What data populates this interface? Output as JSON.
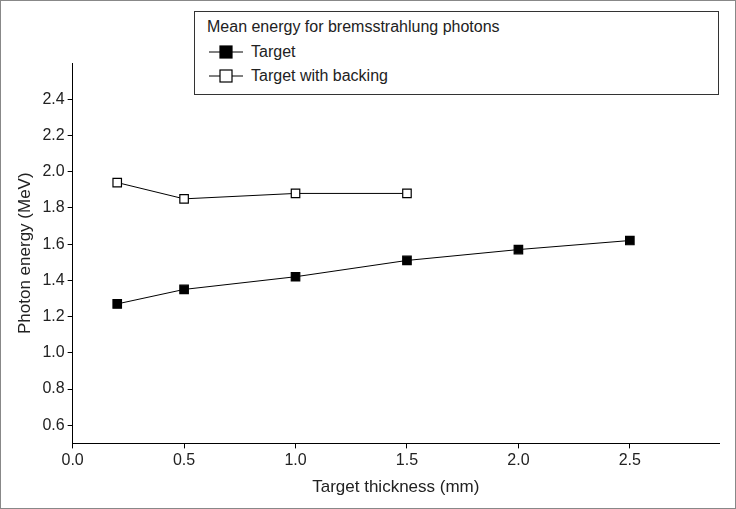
{
  "chart_data": {
    "type": "line",
    "legend_title": "Mean energy for bremsstrahlung photons",
    "x_label": "Target thickness (mm)",
    "y_label": "Photon energy (MeV)",
    "series": [
      {
        "name": "Target",
        "color": "#000000",
        "marker": "square",
        "line_style": "solid",
        "x": [
          0.2,
          0.5,
          1.0,
          1.5,
          2.0,
          2.5
        ],
        "values": [
          1.27,
          1.35,
          1.42,
          1.51,
          1.57,
          1.62
        ]
      },
      {
        "name": "Target with backing",
        "color": "#000000",
        "marker": "open_square",
        "line_style": "solid",
        "x": [
          0.2,
          0.5,
          1.0,
          1.5
        ],
        "values": [
          1.94,
          1.85,
          1.88,
          1.88
        ]
      }
    ],
    "xlim": [
      0,
      2.9
    ],
    "xticks": [
      {
        "value": 0,
        "label": "0.0"
      },
      0.5,
      {
        "value": 1,
        "label": "1.0"
      },
      1.5,
      {
        "value": 2,
        "label": "2.0"
      },
      2.5
    ],
    "ylim": [
      0.5,
      2.6
    ],
    "yticks": [
      0.6,
      0.8,
      {
        "value": 1,
        "label": "1.0"
      },
      1.2,
      1.4,
      1.6,
      1.8,
      {
        "value": 2,
        "label": "2.0"
      },
      2.2,
      2.4
    ],
    "grid": false,
    "legend": "upper right"
  }
}
